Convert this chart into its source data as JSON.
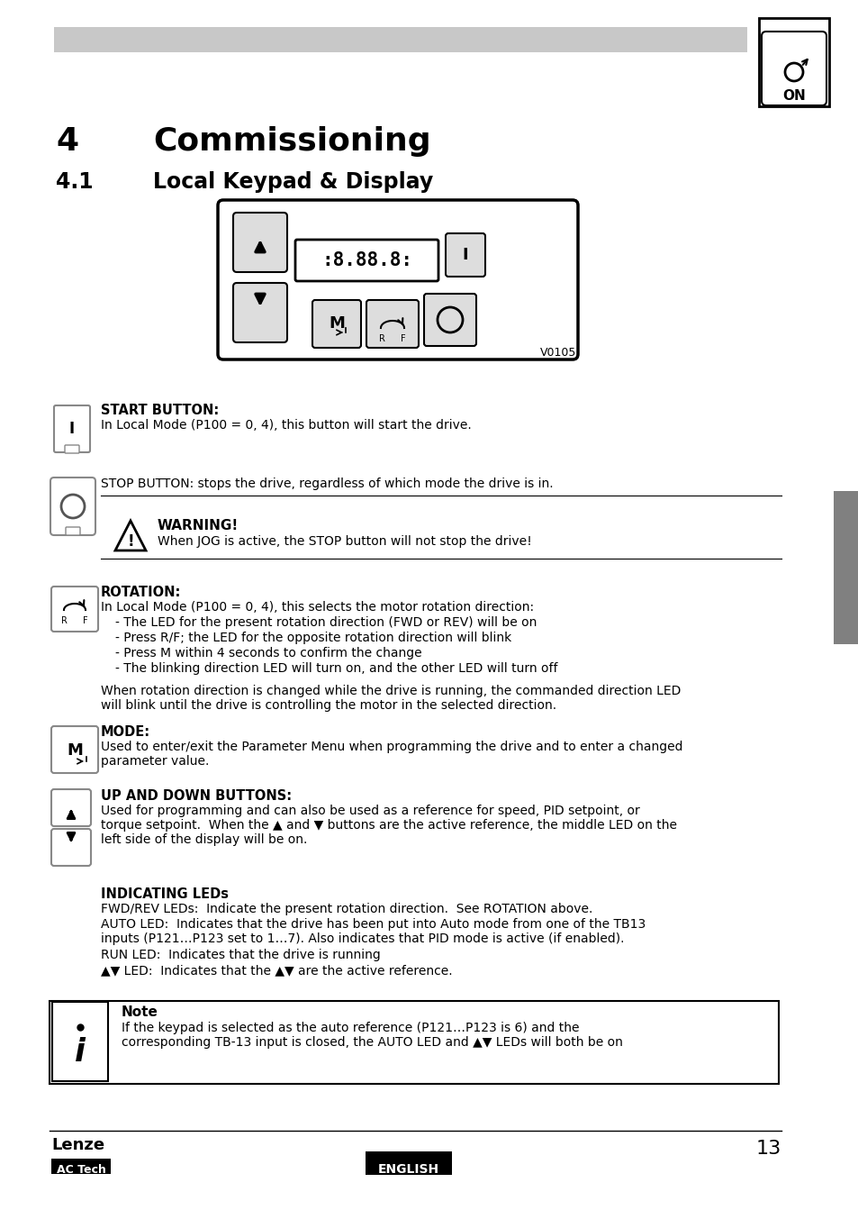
{
  "page_bg": "#ffffff",
  "header_bar_color": "#c8c8c8",
  "chapter_num": "4",
  "chapter_title": "Commissioning",
  "section_num": "4.1",
  "section_title": "Local Keypad & Display",
  "v0105_label": "V0105",
  "start_btn_title": "START BUTTON:",
  "start_btn_text": "In Local Mode (P100 = 0, 4), this button will start the drive.",
  "stop_btn_title": "STOP BUTTON: stops the drive, regardless of which mode the drive is in.",
  "warning_title": "WARNING!",
  "warning_text": "When JOG is active, the STOP button will not stop the drive!",
  "rotation_title": "ROTATION:",
  "rotation_text1": "In Local Mode (P100 = 0, 4), this selects the motor rotation direction:",
  "rotation_bullets": [
    "- The LED for the present rotation direction (FWD or REV) will be on",
    "- Press R/F; the LED for the opposite rotation direction will blink",
    "- Press M within 4 seconds to confirm the change",
    "- The blinking direction LED will turn on, and the other LED will turn off"
  ],
  "rotation_extra": "When rotation direction is changed while the drive is running, the commanded direction LED\nwill blink until the drive is controlling the motor in the selected direction.",
  "mode_title": "MODE:",
  "mode_text": "Used to enter/exit the Parameter Menu when programming the drive and to enter a changed\nparameter value.",
  "updown_title": "UP AND DOWN BUTTONS:",
  "updown_text": "Used for programming and can also be used as a reference for speed, PID setpoint, or\ntorque setpoint.  When the ▲ and ▼ buttons are the active reference, the middle LED on the\nleft side of the display will be on.",
  "indicating_title": "INDICATING LEDs",
  "indicating_text1": "FWD/REV LEDs:  Indicate the present rotation direction.  See ROTATION above.",
  "indicating_text2": "AUTO LED:  Indicates that the drive has been put into Auto mode from one of the TB13\ninputs (P121…P123 set to 1…7). Also indicates that PID mode is active (if enabled).",
  "indicating_text3": "RUN LED:  Indicates that the drive is running",
  "indicating_text4": "▲▼ LED:  Indicates that the ▲▼ are the active reference.",
  "note_title": "Note",
  "note_text": "If the keypad is selected as the auto reference (P121…P123 is 6) and the\ncorresponding TB-13 input is closed, the AUTO LED and ▲▼ LEDs will both be on",
  "footer_brand_line1": "Lenze",
  "footer_brand_line2": "AC Tech",
  "footer_lang": "ENGLISH",
  "footer_page": "13",
  "sidebar_color": "#808080"
}
